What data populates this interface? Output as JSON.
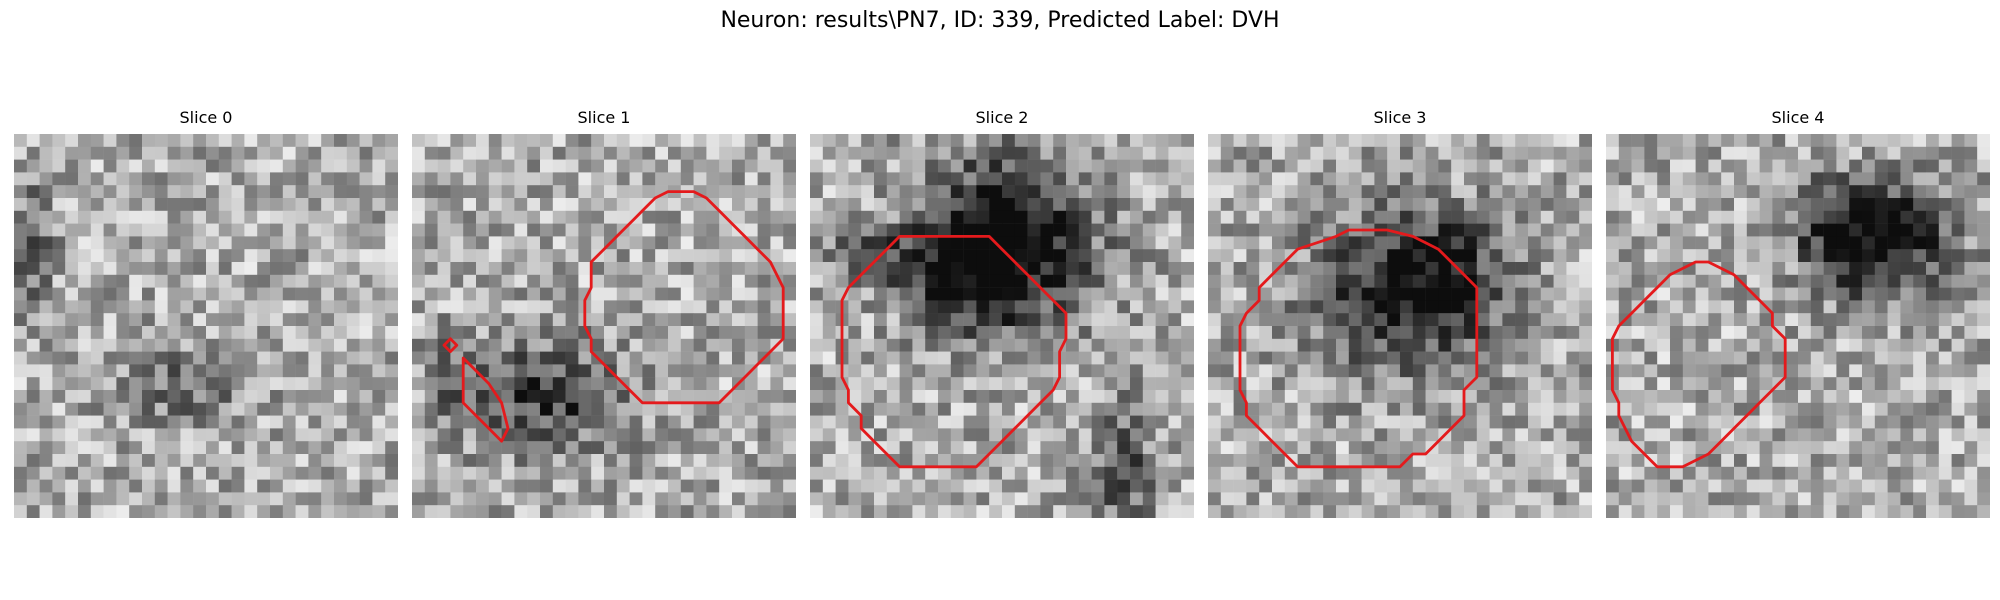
{
  "figure": {
    "title": "Neuron: results\\PN7, ID: 339, Predicted Label: DVH"
  },
  "panels": [
    {
      "title": "Slice 0"
    },
    {
      "title": "Slice 1"
    },
    {
      "title": "Slice 2"
    },
    {
      "title": "Slice 3"
    },
    {
      "title": "Slice 4"
    }
  ],
  "colors": {
    "contour": "#e41a1c",
    "background": "#ffffff"
  }
}
